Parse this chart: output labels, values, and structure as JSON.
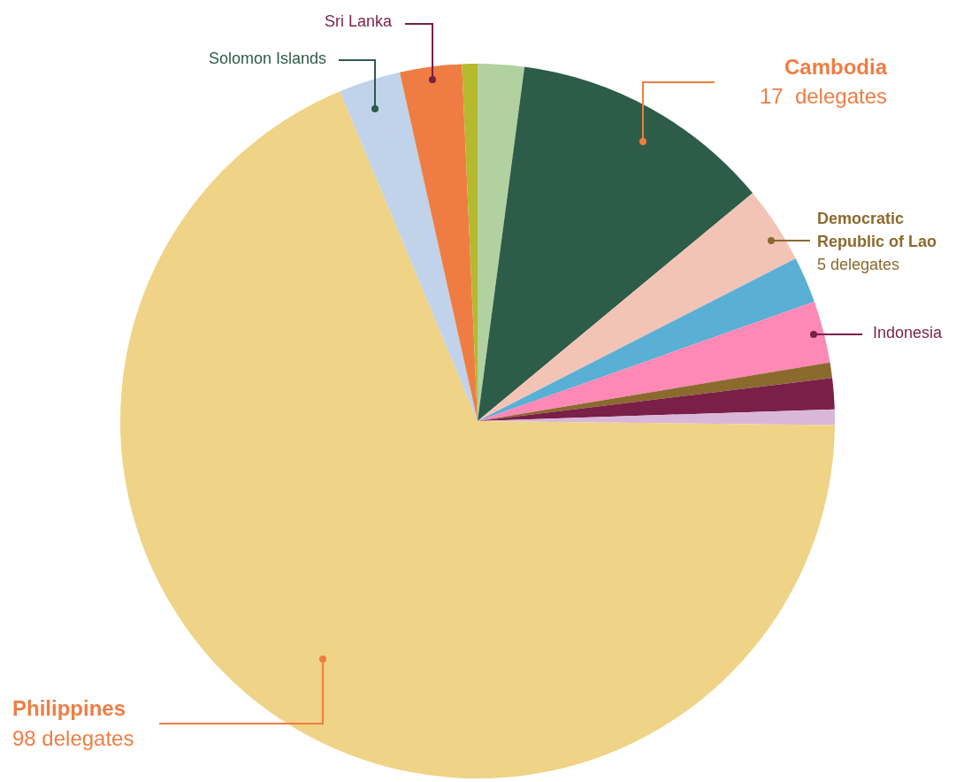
{
  "chart_data": {
    "type": "pie",
    "categories": [
      null,
      "Cambodia",
      "Democratic Republic of Lao",
      null,
      "Indonesia",
      null,
      null,
      null,
      "Philippines",
      "Solomon Islands",
      "Sri Lanka",
      null
    ],
    "values": [
      3,
      17,
      5,
      3,
      4,
      1,
      2,
      1,
      98,
      4,
      4,
      1
    ],
    "value_labels": [
      null,
      "17  delegates",
      "5 delegates",
      null,
      null,
      null,
      null,
      null,
      "98 delegates",
      null,
      null,
      null
    ],
    "colors": [
      "#b2d1a0",
      "#2d5c48",
      "#f3c4b6",
      "#5aafd4",
      "#fe88b6",
      "#8b6a2e",
      "#7a1f47",
      "#d9b7d9",
      "#efd386",
      "#c0d3ea",
      "#ef7d43",
      "#b5b92e"
    ],
    "legend": false
  }
}
